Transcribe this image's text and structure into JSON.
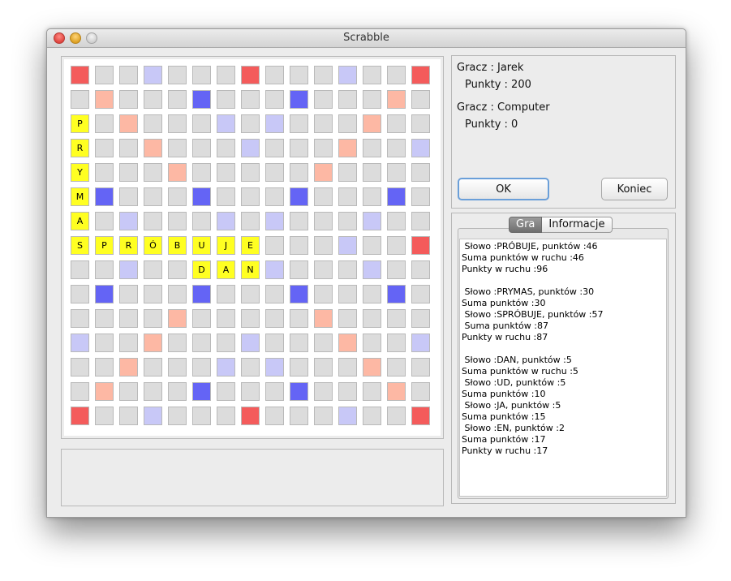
{
  "window": {
    "title": "Scrabble"
  },
  "colors": {
    "empty": "#dcdcdc",
    "triple_word": "#f45b5b",
    "double_word": "#fdb8a4",
    "triple_letter": "#6464f5",
    "double_letter": "#c8c8f7",
    "tile": "#ffff22"
  },
  "board": {
    "size": 15,
    "premium_map": [
      "W..l...W...l..W",
      ".w...L...L...w.",
      "..w...l.l...w..",
      "l..w...l...w..l",
      "....w.....w....",
      ".L...L...L...L.",
      "..l...l.l...l..",
      "W..l...w...l..W",
      "..l...l.l...l..",
      ".L...L...L...L.",
      "....w.....w....",
      "l..w...l...w..l",
      "..w...l.l...w..",
      ".w...L...L...w.",
      "W..l...W...l..W"
    ],
    "tiles": [
      {
        "row": 2,
        "col": 0,
        "letter": "P"
      },
      {
        "row": 3,
        "col": 0,
        "letter": "R"
      },
      {
        "row": 4,
        "col": 0,
        "letter": "Y"
      },
      {
        "row": 5,
        "col": 0,
        "letter": "M"
      },
      {
        "row": 6,
        "col": 0,
        "letter": "A"
      },
      {
        "row": 7,
        "col": 0,
        "letter": "S"
      },
      {
        "row": 7,
        "col": 1,
        "letter": "P"
      },
      {
        "row": 7,
        "col": 2,
        "letter": "R"
      },
      {
        "row": 7,
        "col": 3,
        "letter": "Ó"
      },
      {
        "row": 7,
        "col": 4,
        "letter": "B"
      },
      {
        "row": 7,
        "col": 5,
        "letter": "U"
      },
      {
        "row": 7,
        "col": 6,
        "letter": "J"
      },
      {
        "row": 7,
        "col": 7,
        "letter": "E"
      },
      {
        "row": 8,
        "col": 5,
        "letter": "D"
      },
      {
        "row": 8,
        "col": 6,
        "letter": "A"
      },
      {
        "row": 8,
        "col": 7,
        "letter": "N"
      }
    ]
  },
  "players": [
    {
      "name_label": "Gracz : Jarek",
      "points_label": "Punkty : 200"
    },
    {
      "name_label": "Gracz : Computer",
      "points_label": "Punkty : 0"
    }
  ],
  "buttons": {
    "ok": "OK",
    "end": "Koniec"
  },
  "tabs": [
    {
      "label": "Gra",
      "active": true
    },
    {
      "label": "Informacje",
      "active": false
    }
  ],
  "log": [
    " Słowo :PRÓBUJE, punktów :46",
    "Suma punktów w ruchu :46",
    "Punkty w ruchu :96",
    "",
    " Słowo :PRYMAS, punktów :30",
    "Suma punktów :30",
    " Słowo :SPRÓBUJE, punktów :57",
    " Suma punktów :87",
    "Punkty w ruchu :87",
    "",
    " Słowo :DAN, punktów :5",
    "Suma punktów w ruchu :5",
    " Słowo :UD, punktów :5",
    "Suma punktów :10",
    " Słowo :JA, punktów :5",
    "Suma punktów :15",
    " Słowo :EN, punktów :2",
    "Suma punktów :17",
    "Punkty w ruchu :17"
  ]
}
